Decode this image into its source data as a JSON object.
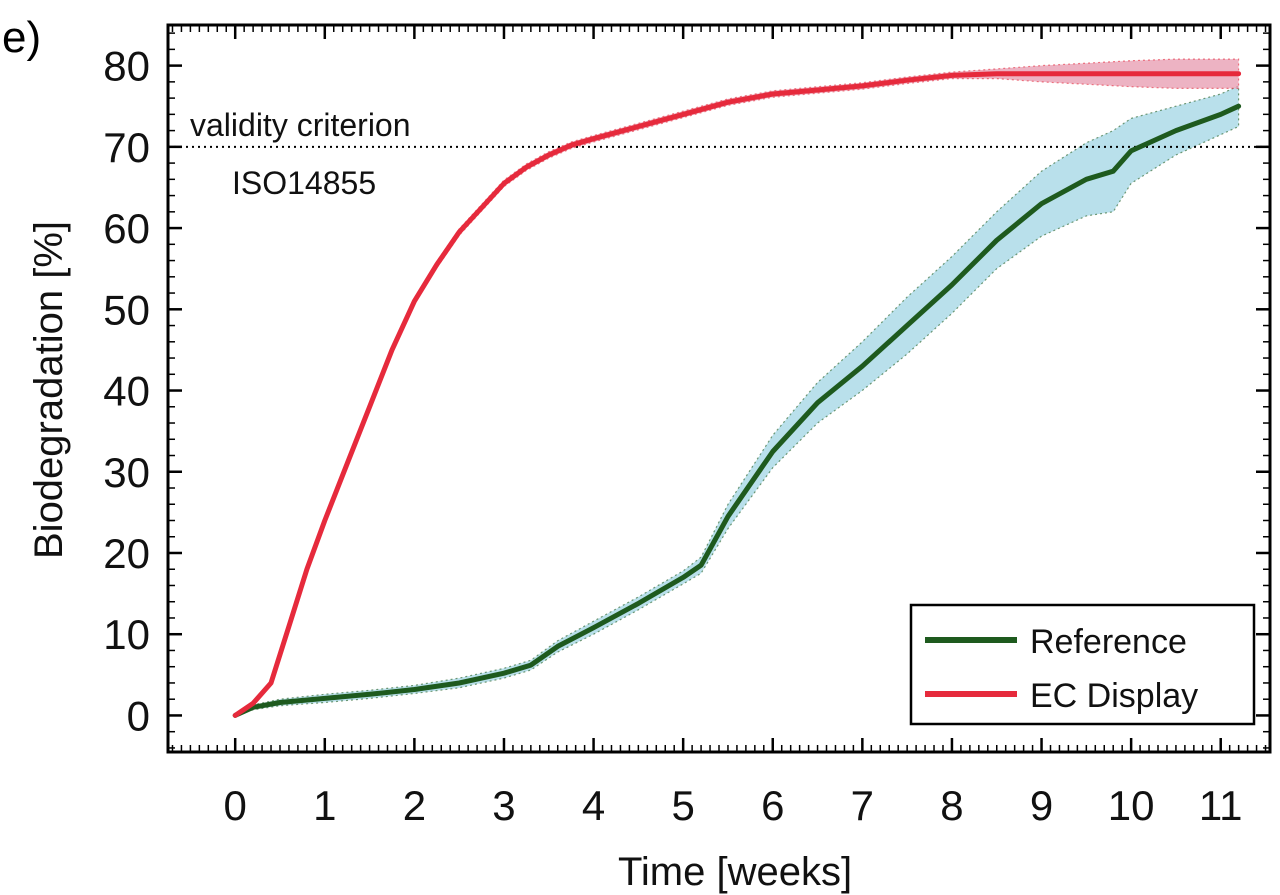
{
  "panel_label": "e)",
  "chart_data": {
    "type": "line",
    "title": "",
    "xlabel": "Time [weeks]",
    "ylabel": "Biodegradation [%]",
    "xlim": [
      -0.75,
      11.55
    ],
    "ylim": [
      -4.5,
      85
    ],
    "x_ticks": [
      0,
      1,
      2,
      3,
      4,
      5,
      6,
      7,
      8,
      9,
      10,
      11
    ],
    "y_ticks": [
      0,
      10,
      20,
      30,
      40,
      50,
      60,
      70,
      80
    ],
    "grid": false,
    "legend_position": "bottom-right",
    "reference_line": {
      "y": 70,
      "style": "dotted",
      "label_line1": "validity criterion",
      "label_line2": "ISO14855"
    },
    "series": [
      {
        "name": "Reference",
        "color": "#1e5a1e",
        "band_color": "#a8d8e6",
        "x": [
          0,
          0.2,
          0.5,
          1,
          1.5,
          2,
          2.5,
          3,
          3.3,
          3.6,
          4,
          4.5,
          5,
          5.2,
          5.5,
          6,
          6.5,
          7,
          7.5,
          8,
          8.5,
          9,
          9.5,
          9.8,
          10,
          10.5,
          11,
          11.2
        ],
        "values": [
          0,
          1,
          1.6,
          2.1,
          2.6,
          3.2,
          4,
          5.2,
          6.2,
          8.5,
          10.8,
          13.8,
          17,
          18.5,
          24.5,
          32.5,
          38.5,
          43,
          48,
          53,
          58.5,
          63,
          66,
          67,
          69.5,
          72,
          74,
          75
        ],
        "band_width": [
          0,
          0.3,
          0.4,
          0.5,
          0.5,
          0.5,
          0.6,
          0.6,
          0.6,
          0.7,
          0.8,
          0.8,
          0.8,
          1,
          1.5,
          2,
          2.5,
          3,
          3.5,
          3.5,
          3.5,
          4,
          4.5,
          5,
          4,
          3,
          2.5,
          2.5
        ]
      },
      {
        "name": "EC Display",
        "color": "#e62a3c",
        "band_color": "#e8a0b4",
        "x": [
          0,
          0.2,
          0.4,
          0.6,
          0.8,
          1,
          1.25,
          1.5,
          1.75,
          2,
          2.25,
          2.5,
          2.75,
          3,
          3.25,
          3.5,
          3.75,
          4,
          4.5,
          5,
          5.5,
          6,
          6.5,
          7,
          7.5,
          8,
          8.5,
          9,
          9.5,
          10,
          10.5,
          11,
          11.2
        ],
        "values": [
          0,
          1.5,
          4,
          11,
          18,
          24,
          31,
          38,
          45,
          51,
          55.5,
          59.5,
          62.5,
          65.5,
          67.5,
          69,
          70.2,
          71,
          72.5,
          74,
          75.5,
          76.5,
          77,
          77.5,
          78.2,
          78.8,
          79,
          79,
          79,
          79,
          79,
          79,
          79
        ],
        "band_width": [
          0,
          0.2,
          0.3,
          0.4,
          0.4,
          0.4,
          0.4,
          0.4,
          0.4,
          0.4,
          0.4,
          0.4,
          0.4,
          0.4,
          0.4,
          0.4,
          0.4,
          0.4,
          0.4,
          0.4,
          0.4,
          0.4,
          0.4,
          0.4,
          0.4,
          0.4,
          0.6,
          1,
          1.3,
          1.6,
          1.8,
          1.8,
          1.8
        ]
      }
    ]
  }
}
